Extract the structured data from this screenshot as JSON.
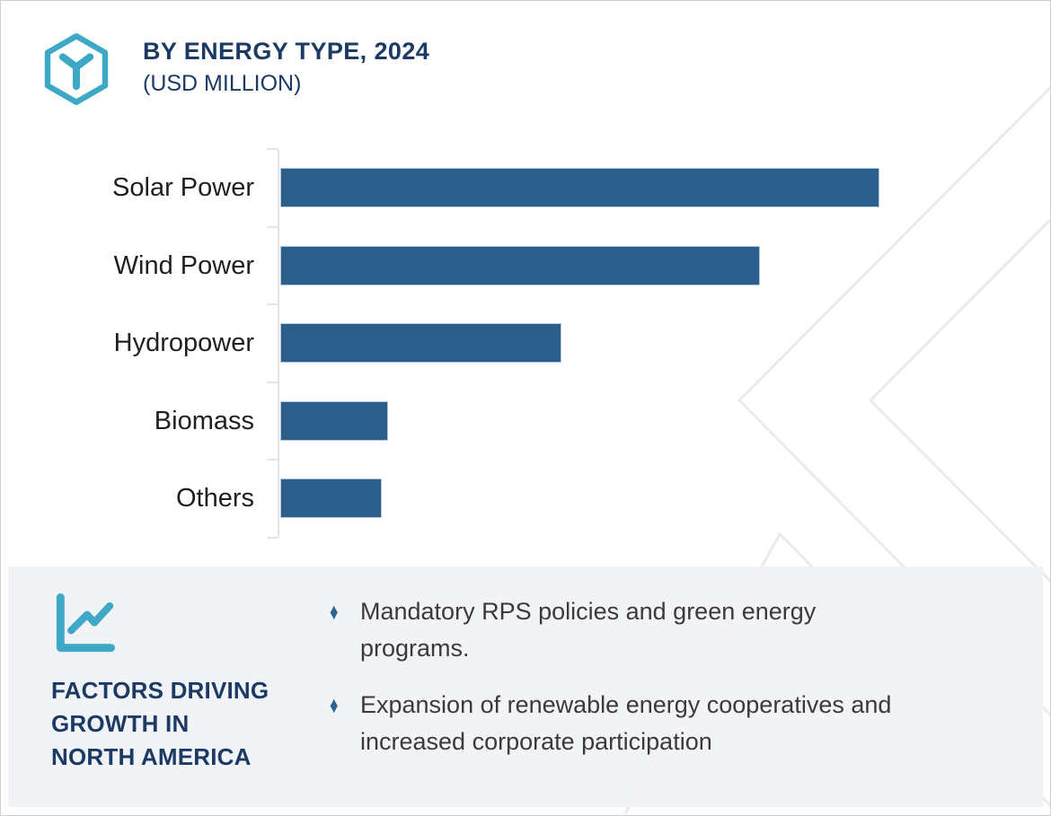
{
  "header": {
    "title": "BY ENERGY TYPE, 2024",
    "subtitle": "(USD MILLION)",
    "logo_icon": "cube-hexagon-icon",
    "title_color": "#1b3a64",
    "accent_teal": "#3ea9c7"
  },
  "chart_data": {
    "type": "bar",
    "orientation": "horizontal",
    "title": "BY ENERGY TYPE, 2024 (USD MILLION)",
    "categories": [
      "Solar Power",
      "Wind Power",
      "Hydropower",
      "Biomass",
      "Others"
    ],
    "values": [
      100,
      80,
      47,
      18,
      17
    ],
    "value_note": "No numeric axis labels or data labels are shown; values are relative bar lengths with Solar Power = 100",
    "xlabel": "",
    "ylabel": "",
    "xlim": [
      0,
      104.5
    ],
    "grid": false,
    "legend": "none",
    "bar_color": "#2d5f8c",
    "bar_border_color": "#b3c8da",
    "axis_color": "#e3e4e7",
    "label_color": "#1f1f1f"
  },
  "factors_panel": {
    "icon": "line-chart-icon",
    "heading_lines": [
      "FACTORS DRIVING",
      "GROWTH IN",
      "NORTH AMERICA"
    ],
    "heading_color": "#1b3a64",
    "bullet_marker": "♦",
    "bullet_color": "#2d6292",
    "bullets": [
      {
        "lines": [
          "Mandatory RPS policies and green energy",
          "programs."
        ]
      },
      {
        "lines": [
          "Expansion of renewable energy cooperatives and",
          "increased corporate participation"
        ]
      }
    ],
    "background_color": "#f1f2f5"
  },
  "watermark": {
    "description": "faint nested chevron outlines",
    "color": "#ebebee"
  }
}
